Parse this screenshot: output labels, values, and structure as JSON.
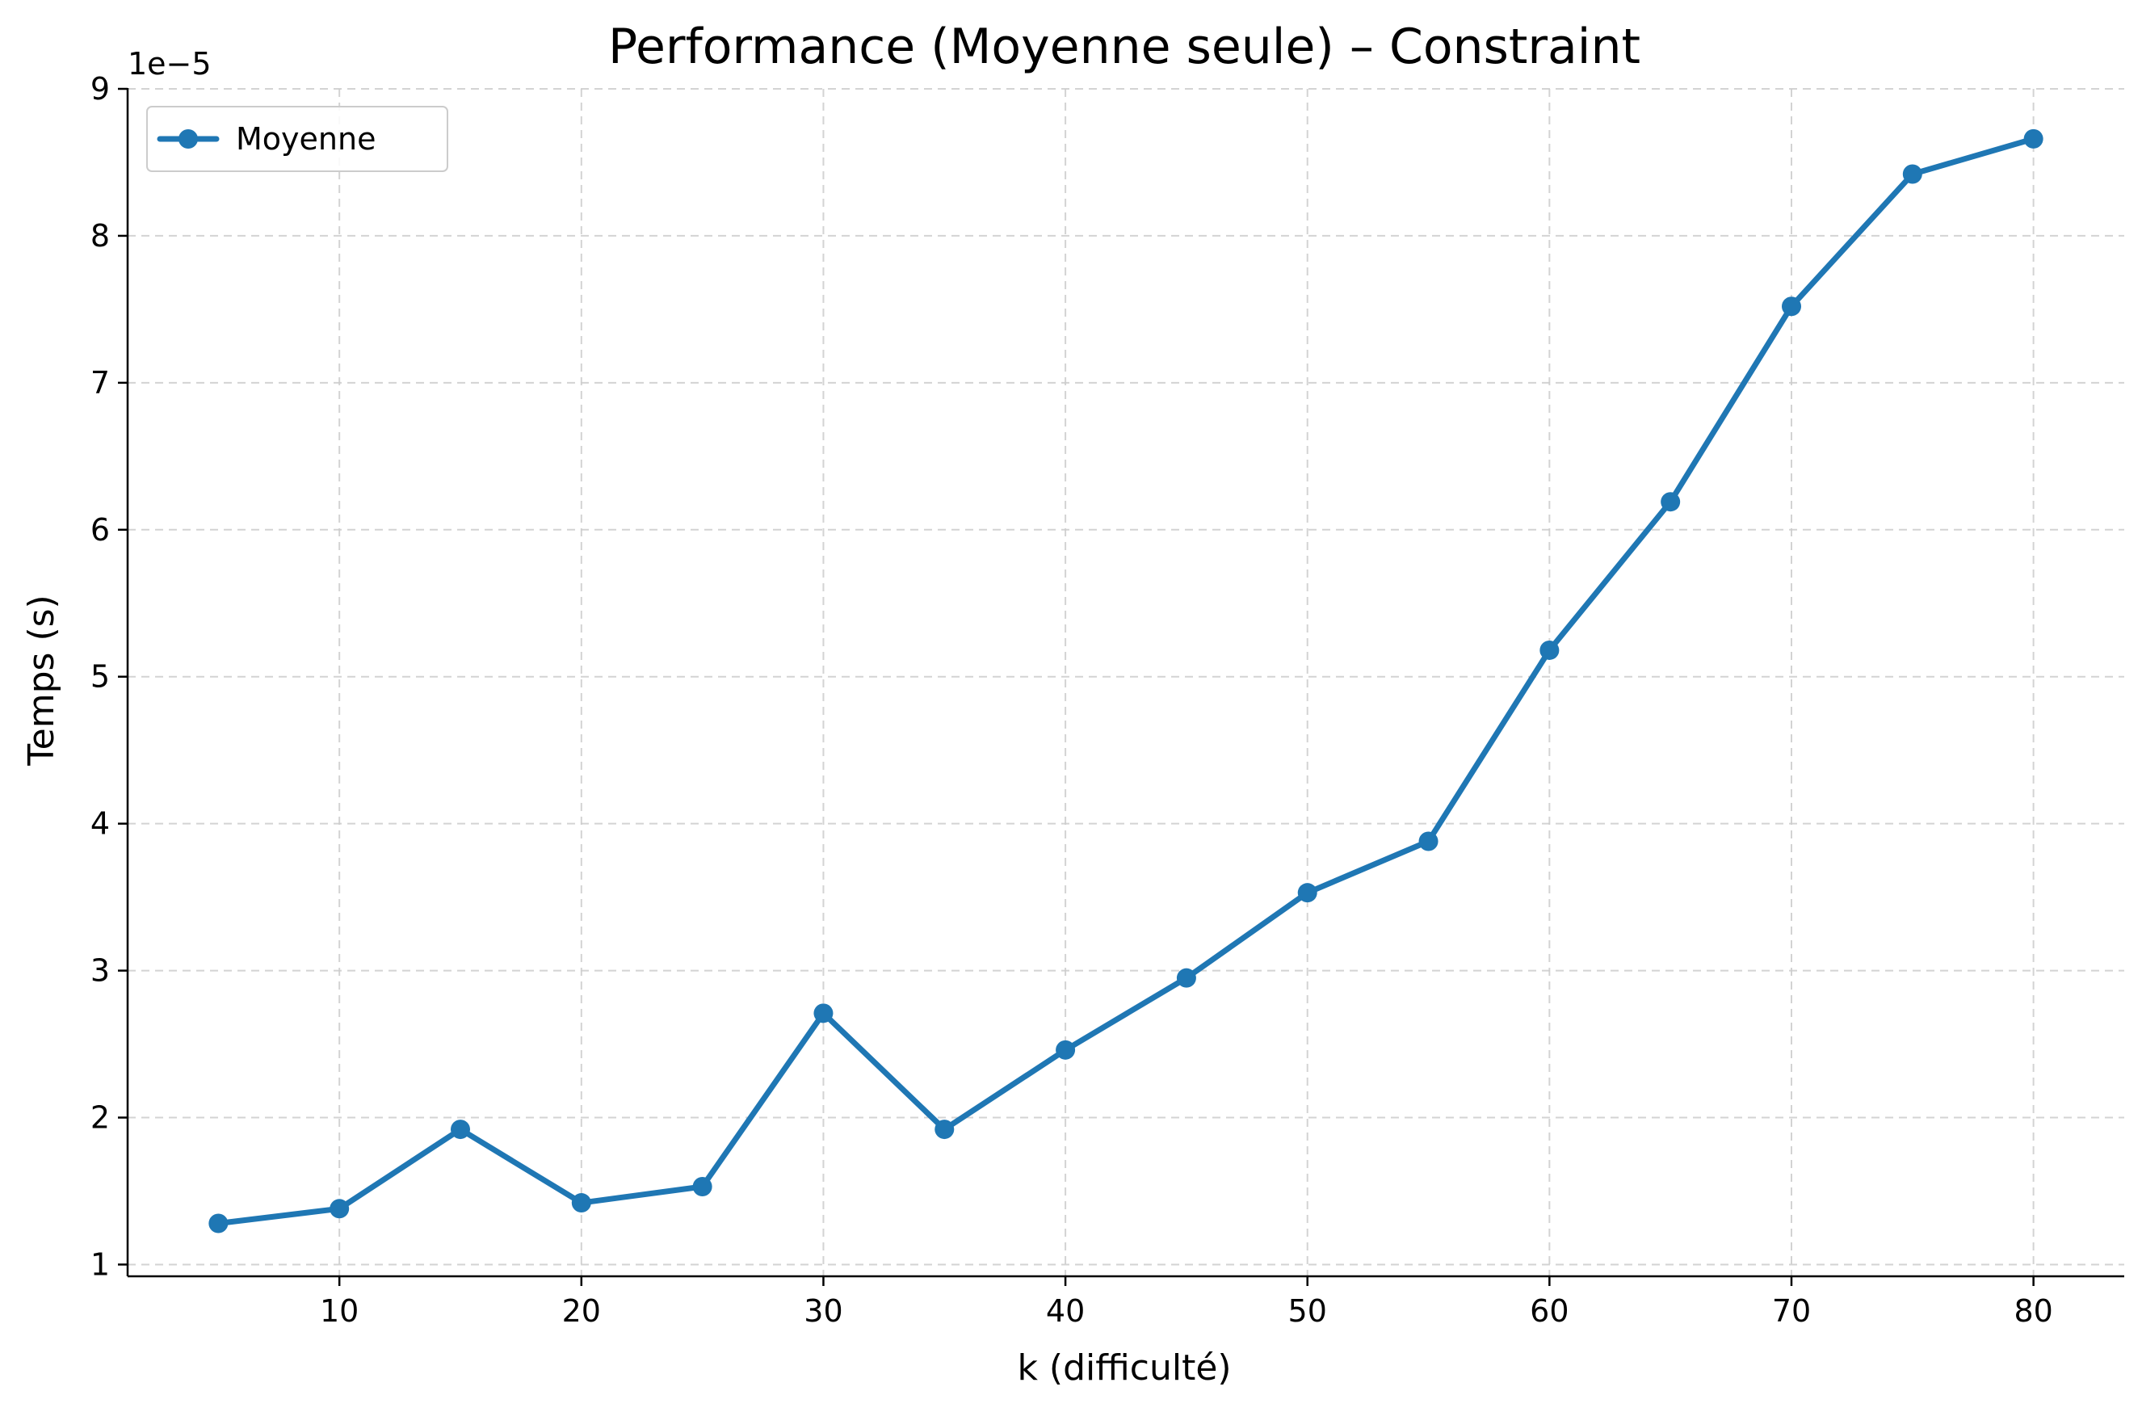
{
  "chart_data": {
    "type": "line",
    "title": "Performance (Moyenne seule) – Constraint",
    "xlabel": "k (difficulté)",
    "ylabel": "Temps (s)",
    "y_offset_label": "1e−5",
    "y_scale_factor": 1e-05,
    "xlim": [
      1.25,
      83.75
    ],
    "ylim": [
      0.92,
      9.0
    ],
    "xticks": [
      10,
      20,
      30,
      40,
      50,
      60,
      70,
      80
    ],
    "yticks": [
      1,
      2,
      3,
      4,
      5,
      6,
      7,
      8,
      9
    ],
    "grid": true,
    "legend_position": "upper-left",
    "x": [
      5,
      10,
      15,
      20,
      25,
      30,
      35,
      40,
      45,
      50,
      55,
      60,
      65,
      70,
      75,
      80
    ],
    "series": [
      {
        "name": "Moyenne",
        "color": "#1f77b4",
        "marker": "circle",
        "values": [
          1.28,
          1.38,
          1.92,
          1.42,
          1.53,
          2.71,
          1.92,
          2.46,
          2.95,
          3.53,
          3.88,
          5.18,
          6.19,
          7.52,
          8.42,
          8.66
        ]
      }
    ]
  }
}
